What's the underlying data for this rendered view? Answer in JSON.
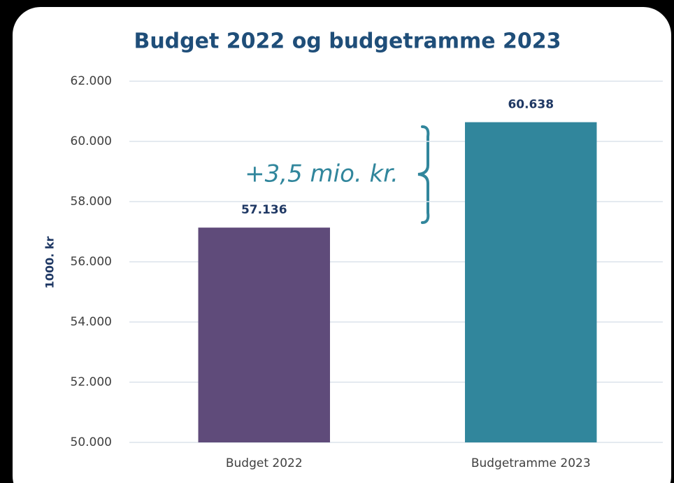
{
  "chart_data": {
    "type": "bar",
    "title": "Budget 2022 og budgetramme 2023",
    "ylabel": "1000. kr",
    "categories": [
      "Budget 2022",
      "Budgetramme 2023"
    ],
    "values": [
      57136,
      60638
    ],
    "value_labels": [
      "57.136",
      "60.638"
    ],
    "colors": [
      "#5f4b7a",
      "#31869c"
    ],
    "ylim": [
      50000,
      62000
    ],
    "yticks": [
      {
        "value": 50000,
        "label": "50.000"
      },
      {
        "value": 52000,
        "label": "52.000"
      },
      {
        "value": 54000,
        "label": "54.000"
      },
      {
        "value": 56000,
        "label": "56.000"
      },
      {
        "value": 58000,
        "label": "58.000"
      },
      {
        "value": 60000,
        "label": "60.000"
      },
      {
        "value": 62000,
        "label": "62.000"
      }
    ],
    "grid": true,
    "annotation": "+3,5 mio. kr."
  }
}
